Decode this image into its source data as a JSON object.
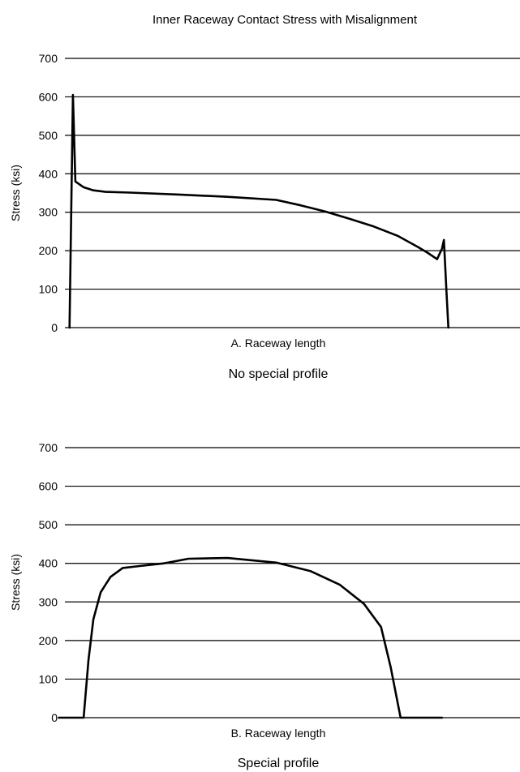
{
  "figure_title": "Inner Raceway Contact Stress with Misalignment",
  "chart_data": [
    {
      "type": "line",
      "title": "No special profile",
      "xlabel": "A. Raceway length",
      "ylabel": "Stress (ksi)",
      "ylim": [
        0,
        700
      ],
      "yticks": [
        "0",
        "100",
        "200",
        "300",
        "400",
        "500",
        "600",
        "700"
      ],
      "grid": true,
      "xlim": [
        0,
        100
      ],
      "series": [
        {
          "x": [
            7.6,
            8.3,
            8.8,
            10.5,
            12.5,
            15,
            20,
            30,
            40,
            50,
            55,
            60,
            65,
            70,
            75,
            79,
            81,
            83,
            84,
            84.4,
            84.9,
            85.3
          ],
          "values": [
            0,
            605,
            380,
            365,
            357,
            353,
            351,
            346,
            340,
            332,
            318,
            302,
            283,
            263,
            238,
            210,
            195,
            178,
            205,
            228,
            100,
            0
          ]
        }
      ]
    },
    {
      "type": "line",
      "title": "Special profile",
      "xlabel": "B. Raceway length",
      "ylabel": "Stress (ksi)",
      "ylim": [
        0,
        700
      ],
      "yticks": [
        "0",
        "100",
        "200",
        "300",
        "400",
        "500",
        "600",
        "700"
      ],
      "grid": true,
      "xlim": [
        0,
        100
      ],
      "series": [
        {
          "x": [
            5.4,
            10.5,
            11.5,
            12.5,
            14,
            16,
            18.5,
            22,
            27,
            32,
            40,
            50,
            57,
            63,
            68,
            71.5,
            73.5,
            75.5,
            78,
            84
          ],
          "values": [
            0,
            0,
            150,
            255,
            325,
            365,
            388,
            393,
            400,
            412,
            414,
            402,
            380,
            345,
            295,
            235,
            130,
            0,
            0,
            0
          ]
        }
      ]
    }
  ]
}
